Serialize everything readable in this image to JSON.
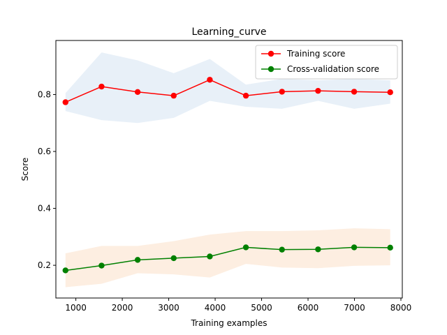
{
  "chart_data": {
    "type": "line",
    "title": "Learning_curve",
    "xlabel": "Training examples",
    "ylabel": "Score",
    "xlim": [
      570,
      8030
    ],
    "ylim": [
      0.085,
      0.99
    ],
    "xticks": [
      1000,
      2000,
      3000,
      4000,
      5000,
      6000,
      7000,
      8000
    ],
    "yticks": [
      0.2,
      0.4,
      0.6,
      0.8
    ],
    "grid": false,
    "legend_position": "top-right",
    "x": [
      777,
      1554,
      2331,
      3108,
      3885,
      4662,
      5439,
      6216,
      6993,
      7770
    ],
    "series": [
      {
        "name": "Training score",
        "color": "#ff0000",
        "band_color": "#e8f0f8",
        "values": [
          0.773,
          0.828,
          0.809,
          0.796,
          0.852,
          0.796,
          0.81,
          0.813,
          0.81,
          0.808
        ],
        "band_upper": [
          0.805,
          0.948,
          0.92,
          0.875,
          0.925,
          0.835,
          0.855,
          0.85,
          0.855,
          0.85
        ],
        "band_lower": [
          0.742,
          0.71,
          0.7,
          0.718,
          0.778,
          0.757,
          0.75,
          0.778,
          0.75,
          0.768
        ]
      },
      {
        "name": "Cross-validation score",
        "color": "#008000",
        "band_color": "#fdeee1",
        "values": [
          0.182,
          0.199,
          0.219,
          0.225,
          0.231,
          0.263,
          0.255,
          0.256,
          0.263,
          0.262
        ],
        "band_upper": [
          0.242,
          0.268,
          0.268,
          0.285,
          0.308,
          0.32,
          0.32,
          0.323,
          0.33,
          0.327
        ],
        "band_lower": [
          0.123,
          0.135,
          0.172,
          0.168,
          0.157,
          0.205,
          0.192,
          0.19,
          0.198,
          0.2
        ]
      }
    ]
  }
}
